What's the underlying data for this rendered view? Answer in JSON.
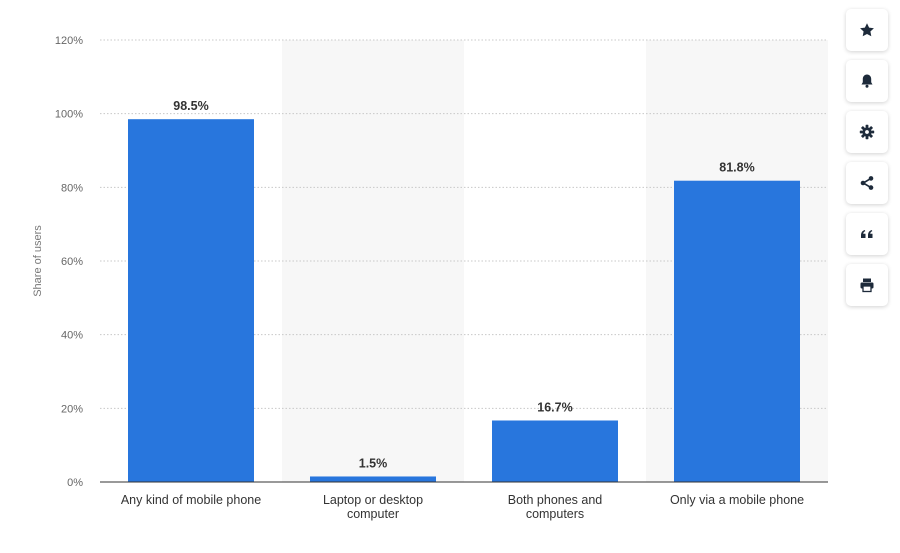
{
  "chart_data": {
    "type": "bar",
    "categories": [
      [
        "Any kind of mobile phone"
      ],
      [
        "Laptop or desktop",
        "computer"
      ],
      [
        "Both phones and",
        "computers"
      ],
      [
        "Only via a mobile phone"
      ]
    ],
    "values": [
      98.5,
      1.5,
      16.7,
      81.8
    ],
    "data_labels": [
      "98.5%",
      "1.5%",
      "16.7%",
      "81.8%"
    ],
    "title": "",
    "xlabel": "",
    "ylabel": "Share of users",
    "ylim": [
      0,
      120
    ],
    "yticks": [
      0,
      20,
      40,
      60,
      80,
      100,
      120
    ],
    "ytick_labels": [
      "0%",
      "20%",
      "40%",
      "60%",
      "80%",
      "100%",
      "120%"
    ],
    "grid": true,
    "bar_color": "#2876dd",
    "band_color": "#f7f7f7",
    "grid_color": "#c8c8c8"
  },
  "toolbar": {
    "buttons": [
      {
        "name": "favorite-button",
        "icon": "star-icon"
      },
      {
        "name": "notification-button",
        "icon": "bell-icon"
      },
      {
        "name": "settings-button",
        "icon": "gear-icon"
      },
      {
        "name": "share-button",
        "icon": "share-icon"
      },
      {
        "name": "cite-button",
        "icon": "quote-icon"
      },
      {
        "name": "print-button",
        "icon": "printer-icon"
      }
    ]
  }
}
